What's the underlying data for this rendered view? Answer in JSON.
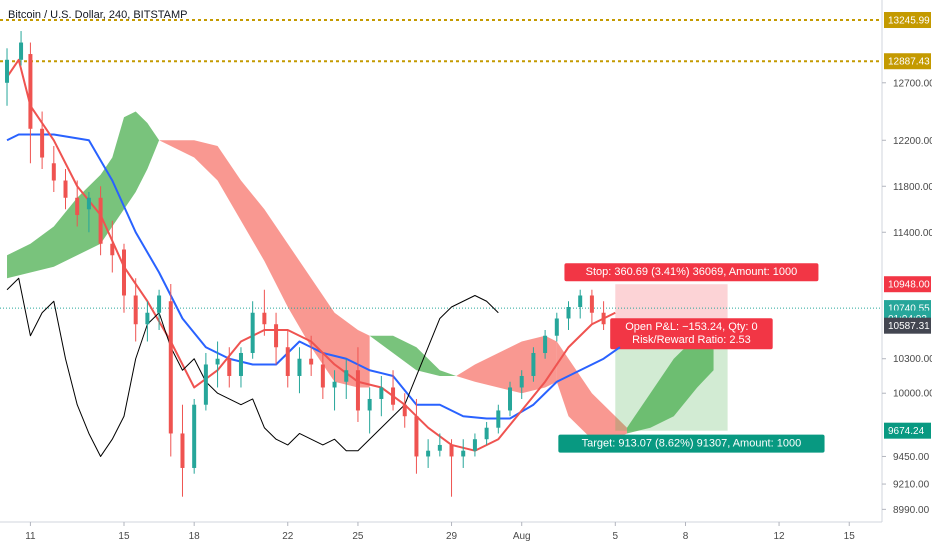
{
  "chart_data": {
    "type": "candlestick",
    "title": "Bitcoin / U.S. Dollar, 240, BITSTAMP",
    "y_axis": {
      "ticks": [
        12700,
        12200,
        11800,
        11400,
        10300,
        10000,
        9450,
        9210,
        8990
      ],
      "tick_labels": [
        "12700.00",
        "12200.00",
        "11800.00",
        "11400.00",
        "10300.00",
        "10000.00",
        "9450.00",
        "9210.00",
        "8990.00"
      ],
      "ylim": [
        8880,
        13420
      ],
      "position": "right"
    },
    "x_axis": {
      "tick_labels": [
        "11",
        "15",
        "18",
        "22",
        "25",
        "29",
        "Aug",
        "5",
        "8",
        "12",
        "15"
      ],
      "tick_days": [
        11,
        15,
        18,
        22,
        25,
        29,
        32,
        36,
        39,
        43,
        46
      ],
      "xlim_days": [
        9.7,
        47.4
      ]
    },
    "price_tags": [
      {
        "label": "13245.99",
        "value": 13245.99,
        "color": "#c49a00"
      },
      {
        "label": "12887.43",
        "value": 12887.43,
        "color": "#c49a00"
      },
      {
        "label": "10948.00",
        "value": 10948.0,
        "color": "#f23645"
      },
      {
        "label": "10740.55",
        "value": 10740.55,
        "color": "#26a69a"
      },
      {
        "label": "01:04:03",
        "value": 10650,
        "color": "#26a69a"
      },
      {
        "label": "10587.31",
        "value": 10587.31,
        "color": "#434651"
      },
      {
        "label": "9674.24",
        "value": 9674.24,
        "color": "#089981"
      }
    ],
    "horizontal_levels": [
      {
        "value": 13245.99,
        "style": "dotted",
        "color": "#c49a00"
      },
      {
        "value": 12887.43,
        "style": "dotted",
        "color": "#c49a00"
      },
      {
        "value": 10740.55,
        "style": "dotted",
        "color": "#26a69a"
      }
    ],
    "position": {
      "type": "short",
      "start_day": 36.0,
      "end_day": 40.8,
      "entry": 10587.31,
      "stop": 10948.0,
      "target": 9674.24,
      "stop_label": "Stop: 360.69 (3.41%) 36069, Amount: 1000",
      "pnl_label": "Open P&L: −153.24, Qty: 0",
      "rr_label": "Risk/Reward Ratio: 2.53",
      "target_label": "Target: 913.07 (8.62%) 91307, Amount: 1000"
    },
    "candles": [
      [
        10.0,
        12700,
        13000,
        12500,
        12900
      ],
      [
        10.6,
        12900,
        13150,
        12850,
        13050
      ],
      [
        11.0,
        12950,
        13050,
        12000,
        12300
      ],
      [
        11.5,
        12300,
        12450,
        11950,
        12050
      ],
      [
        12.0,
        12000,
        12150,
        11750,
        11850
      ],
      [
        12.5,
        11850,
        11950,
        11600,
        11700
      ],
      [
        13.0,
        11700,
        11850,
        11450,
        11550
      ],
      [
        13.5,
        11600,
        11750,
        11400,
        11700
      ],
      [
        14.0,
        11700,
        11800,
        11200,
        11300
      ],
      [
        14.5,
        11300,
        11500,
        11050,
        11200
      ],
      [
        15.0,
        11250,
        11300,
        10700,
        10850
      ],
      [
        15.5,
        10850,
        11000,
        10450,
        10600
      ],
      [
        16.0,
        10600,
        10800,
        10450,
        10700
      ],
      [
        16.5,
        10700,
        10900,
        10550,
        10850
      ],
      [
        17.0,
        10800,
        10950,
        9450,
        9650
      ],
      [
        17.5,
        9650,
        9900,
        9100,
        9350
      ],
      [
        18.0,
        9350,
        9950,
        9300,
        9900
      ],
      [
        18.5,
        9900,
        10350,
        9850,
        10250
      ],
      [
        19.0,
        10250,
        10450,
        10050,
        10300
      ],
      [
        19.5,
        10300,
        10400,
        10050,
        10150
      ],
      [
        20.0,
        10150,
        10400,
        10050,
        10350
      ],
      [
        20.5,
        10350,
        10800,
        10300,
        10700
      ],
      [
        21.0,
        10700,
        10900,
        10500,
        10600
      ],
      [
        21.5,
        10600,
        10700,
        10250,
        10400
      ],
      [
        22.0,
        10400,
        10550,
        10050,
        10150
      ],
      [
        22.5,
        10150,
        10400,
        10000,
        10300
      ],
      [
        23.0,
        10300,
        10500,
        10150,
        10250
      ],
      [
        23.5,
        10250,
        10350,
        9950,
        10050
      ],
      [
        24.0,
        10050,
        10200,
        9850,
        10100
      ],
      [
        24.5,
        10100,
        10300,
        9950,
        10200
      ],
      [
        25.0,
        10200,
        10400,
        9750,
        9850
      ],
      [
        25.5,
        9850,
        10050,
        9650,
        9950
      ],
      [
        26.0,
        9950,
        10150,
        9800,
        10050
      ],
      [
        26.5,
        10050,
        10200,
        9850,
        9900
      ],
      [
        27.0,
        9900,
        10000,
        9700,
        9800
      ],
      [
        27.5,
        9800,
        9950,
        9300,
        9450
      ],
      [
        28.0,
        9450,
        9600,
        9350,
        9500
      ],
      [
        28.5,
        9500,
        9650,
        9450,
        9550
      ],
      [
        29.0,
        9550,
        9600,
        9100,
        9450
      ],
      [
        29.5,
        9450,
        9600,
        9350,
        9500
      ],
      [
        30.0,
        9500,
        9650,
        9450,
        9600
      ],
      [
        30.5,
        9600,
        9750,
        9550,
        9700
      ],
      [
        31.0,
        9700,
        9900,
        9650,
        9850
      ],
      [
        31.5,
        9850,
        10100,
        9800,
        10050
      ],
      [
        32.0,
        10050,
        10200,
        9950,
        10150
      ],
      [
        32.5,
        10150,
        10400,
        10100,
        10350
      ],
      [
        33.0,
        10350,
        10550,
        10300,
        10500
      ],
      [
        33.5,
        10500,
        10700,
        10450,
        10650
      ],
      [
        34.0,
        10650,
        10800,
        10550,
        10750
      ],
      [
        34.5,
        10750,
        10900,
        10650,
        10850
      ],
      [
        35.0,
        10850,
        10900,
        10600,
        10700
      ],
      [
        35.5,
        10700,
        10800,
        10550,
        10600
      ]
    ],
    "lines": [
      {
        "color": "#2962ff",
        "width": 2,
        "points": [
          [
            10.0,
            12200
          ],
          [
            10.5,
            12250
          ],
          [
            12.0,
            12250
          ],
          [
            13.5,
            12200
          ],
          [
            14.5,
            11850
          ],
          [
            15.5,
            11400
          ],
          [
            16.5,
            11050
          ],
          [
            17.5,
            10650
          ],
          [
            18.5,
            10400
          ],
          [
            19.5,
            10300
          ],
          [
            20.5,
            10250
          ],
          [
            21.5,
            10250
          ],
          [
            22.5,
            10450
          ],
          [
            23.5,
            10350
          ],
          [
            24.5,
            10300
          ],
          [
            25.5,
            10200
          ],
          [
            26.5,
            10150
          ],
          [
            27.5,
            9900
          ],
          [
            28.5,
            9900
          ],
          [
            29.5,
            9800
          ],
          [
            30.5,
            9780
          ],
          [
            31.5,
            9780
          ],
          [
            32.5,
            9900
          ],
          [
            33.5,
            10100
          ],
          [
            34.5,
            10200
          ],
          [
            35.5,
            10300
          ],
          [
            36.2,
            10400
          ]
        ]
      },
      {
        "color": "#ef5350",
        "width": 2,
        "points": [
          [
            10.0,
            12750
          ],
          [
            10.5,
            12900
          ],
          [
            11.0,
            12500
          ],
          [
            12.0,
            12200
          ],
          [
            13.0,
            11800
          ],
          [
            14.0,
            11550
          ],
          [
            15.0,
            11100
          ],
          [
            16.0,
            10800
          ],
          [
            17.0,
            10450
          ],
          [
            18.0,
            10050
          ],
          [
            19.0,
            10200
          ],
          [
            20.0,
            10450
          ],
          [
            21.0,
            10550
          ],
          [
            22.0,
            10550
          ],
          [
            23.0,
            10450
          ],
          [
            24.0,
            10250
          ],
          [
            25.0,
            10100
          ],
          [
            26.0,
            10050
          ],
          [
            27.0,
            9900
          ],
          [
            28.0,
            9700
          ],
          [
            29.0,
            9550
          ],
          [
            30.0,
            9500
          ],
          [
            31.0,
            9600
          ],
          [
            32.0,
            9850
          ],
          [
            33.0,
            10100
          ],
          [
            34.0,
            10400
          ],
          [
            35.0,
            10600
          ],
          [
            36.0,
            10700
          ]
        ]
      },
      {
        "color": "#000000",
        "width": 1,
        "points": [
          [
            10.0,
            10900
          ],
          [
            10.5,
            11000
          ],
          [
            11.0,
            10500
          ],
          [
            11.5,
            10700
          ],
          [
            12.0,
            10800
          ],
          [
            12.5,
            10300
          ],
          [
            13.0,
            9900
          ],
          [
            13.5,
            9650
          ],
          [
            14.0,
            9450
          ],
          [
            14.5,
            9600
          ],
          [
            15.0,
            9800
          ],
          [
            15.5,
            10300
          ],
          [
            16.0,
            10600
          ],
          [
            16.5,
            10700
          ],
          [
            17.0,
            10400
          ],
          [
            17.5,
            10200
          ],
          [
            18.0,
            10300
          ],
          [
            18.5,
            10100
          ],
          [
            19.0,
            10000
          ],
          [
            19.5,
            9950
          ],
          [
            20.0,
            9900
          ],
          [
            20.5,
            9950
          ],
          [
            21.0,
            9700
          ],
          [
            21.5,
            9600
          ],
          [
            22.0,
            9550
          ],
          [
            22.5,
            9650
          ],
          [
            23.0,
            9600
          ],
          [
            23.5,
            9550
          ],
          [
            24.0,
            9600
          ],
          [
            24.5,
            9500
          ],
          [
            25.0,
            9500
          ],
          [
            25.5,
            9600
          ],
          [
            26.0,
            9700
          ],
          [
            26.5,
            9800
          ],
          [
            27.0,
            9900
          ],
          [
            27.5,
            10150
          ],
          [
            28.0,
            10400
          ],
          [
            28.5,
            10650
          ],
          [
            29.0,
            10750
          ],
          [
            29.5,
            10800
          ],
          [
            30.0,
            10850
          ],
          [
            30.5,
            10800
          ],
          [
            31.0,
            10700
          ]
        ]
      }
    ],
    "clouds": [
      {
        "color": "#4caf50",
        "opacity": 0.75,
        "upper": [
          [
            10.0,
            11200
          ],
          [
            11.0,
            11300
          ],
          [
            12.0,
            11450
          ],
          [
            13.0,
            11700
          ],
          [
            14.0,
            11900
          ],
          [
            14.5,
            12050
          ],
          [
            15.0,
            12400
          ],
          [
            15.5,
            12450
          ],
          [
            16.0,
            12350
          ],
          [
            16.5,
            12200
          ]
        ],
        "lower": [
          [
            10.0,
            11000
          ],
          [
            11.0,
            11050
          ],
          [
            12.0,
            11100
          ],
          [
            13.0,
            11200
          ],
          [
            14.0,
            11300
          ],
          [
            14.5,
            11450
          ],
          [
            15.0,
            11600
          ],
          [
            15.5,
            11750
          ],
          [
            16.0,
            11950
          ],
          [
            16.5,
            12200
          ]
        ]
      },
      {
        "color": "#f44336",
        "opacity": 0.55,
        "upper": [
          [
            16.5,
            12200
          ],
          [
            18.0,
            12200
          ],
          [
            19.0,
            12150
          ],
          [
            20.0,
            11850
          ],
          [
            21.0,
            11600
          ],
          [
            22.0,
            11300
          ],
          [
            23.0,
            11000
          ],
          [
            24.0,
            10700
          ],
          [
            25.0,
            10550
          ],
          [
            25.5,
            10500
          ]
        ],
        "lower": [
          [
            16.5,
            12200
          ],
          [
            18.0,
            12050
          ],
          [
            19.0,
            11850
          ],
          [
            20.0,
            11500
          ],
          [
            21.0,
            11150
          ],
          [
            22.0,
            10750
          ],
          [
            23.0,
            10400
          ],
          [
            24.0,
            10100
          ],
          [
            25.0,
            10050
          ],
          [
            25.5,
            10050
          ]
        ]
      },
      {
        "color": "#4caf50",
        "opacity": 0.75,
        "upper": [
          [
            25.5,
            10500
          ],
          [
            26.5,
            10500
          ],
          [
            27.5,
            10400
          ],
          [
            28.5,
            10200
          ],
          [
            29.2,
            10150
          ]
        ],
        "lower": [
          [
            25.5,
            10500
          ],
          [
            26.5,
            10350
          ],
          [
            27.5,
            10200
          ],
          [
            28.5,
            10150
          ],
          [
            29.2,
            10150
          ]
        ]
      },
      {
        "color": "#f44336",
        "opacity": 0.55,
        "upper": [
          [
            29.2,
            10150
          ],
          [
            30.0,
            10250
          ],
          [
            31.0,
            10350
          ],
          [
            32.0,
            10450
          ],
          [
            33.0,
            10500
          ],
          [
            33.5,
            10450
          ]
        ],
        "lower": [
          [
            29.2,
            10150
          ],
          [
            30.0,
            10100
          ],
          [
            31.0,
            10050
          ],
          [
            32.0,
            10000
          ],
          [
            33.0,
            10050
          ],
          [
            33.5,
            10100
          ]
        ]
      },
      {
        "color": "#f44336",
        "opacity": 0.55,
        "upper": [
          [
            33.5,
            10450
          ],
          [
            34.0,
            10300
          ],
          [
            35.0,
            10000
          ],
          [
            36.0,
            9800
          ],
          [
            36.5,
            9700
          ]
        ],
        "lower": [
          [
            33.5,
            10100
          ],
          [
            34.0,
            9800
          ],
          [
            35.0,
            9600
          ],
          [
            36.0,
            9600
          ],
          [
            36.5,
            9650
          ]
        ]
      },
      {
        "color": "#4caf50",
        "opacity": 0.75,
        "upper": [
          [
            36.5,
            9700
          ],
          [
            37.5,
            10000
          ],
          [
            38.5,
            10300
          ],
          [
            39.5,
            10500
          ],
          [
            40.2,
            10500
          ]
        ],
        "lower": [
          [
            36.5,
            9650
          ],
          [
            37.5,
            9700
          ],
          [
            38.5,
            9800
          ],
          [
            39.5,
            10050
          ],
          [
            40.2,
            10200
          ]
        ]
      }
    ]
  }
}
